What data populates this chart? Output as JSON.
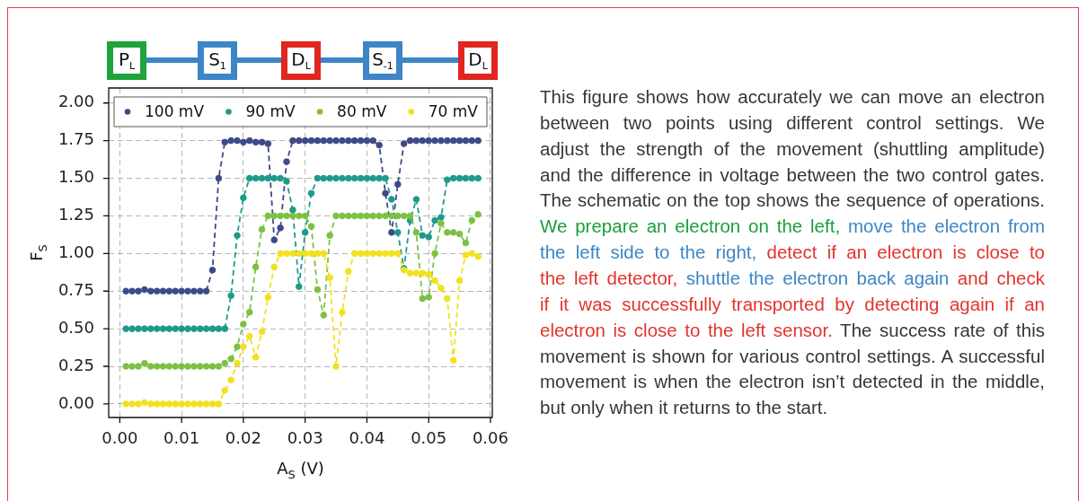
{
  "chart_data": {
    "type": "line",
    "xlabel": "A$_{S}$ (V)",
    "ylabel": "F$_{S}$",
    "annotations": [
      "P$_{L}$",
      "S$_{1}$",
      "D$_{L}$",
      "S$_{-1}$",
      "D$_{L}$",
      "This figure shows how accurately we can move an electron",
      "between two points using different control settings. We",
      "adjust the strength of the movement (shuttling amplitude)",
      "and the difference in voltage between the two control gates.",
      "The schematic on the top shows the sequence of operations.",
      "We prepare an electron on the left,",
      "move the electron from",
      "the left side to the right,",
      "detect if an electron is close to",
      "the left detector,",
      "shuttle the electron back again",
      "and check",
      "if it was successfully transported by detecting again if an",
      "electron is close to the left sensor.",
      "The success rate of this",
      "movement is shown for various control settings. A successful",
      "movement is when the electron isn’t detected in the middle,",
      "but only when it returns to the start."
    ],
    "x": [
      0.001,
      0.002,
      0.003,
      0.004,
      0.005,
      0.006,
      0.007,
      0.008,
      0.009,
      0.01,
      0.011,
      0.012,
      0.013,
      0.014,
      0.015,
      0.016,
      0.017,
      0.018,
      0.019,
      0.02,
      0.021,
      0.022,
      0.023,
      0.024,
      0.025,
      0.026,
      0.027,
      0.028,
      0.029,
      0.03,
      0.031,
      0.032,
      0.033,
      0.034,
      0.035,
      0.036,
      0.037,
      0.038,
      0.039,
      0.04,
      0.041,
      0.042,
      0.043,
      0.044,
      0.045,
      0.046,
      0.047,
      0.048,
      0.049,
      0.05,
      0.051,
      0.052,
      0.053,
      0.054,
      0.055,
      0.056,
      0.057,
      0.058
    ],
    "series": [
      {
        "name": "100 mV",
        "color": "#3e4a89",
        "values": [
          0.75,
          0.75,
          0.75,
          0.76,
          0.75,
          0.75,
          0.75,
          0.75,
          0.75,
          0.75,
          0.75,
          0.75,
          0.75,
          0.75,
          0.89,
          1.5,
          1.74,
          1.75,
          1.75,
          1.74,
          1.75,
          1.74,
          1.74,
          1.73,
          1.09,
          1.17,
          1.61,
          1.75,
          1.75,
          1.75,
          1.75,
          1.75,
          1.75,
          1.75,
          1.75,
          1.75,
          1.75,
          1.75,
          1.75,
          1.75,
          1.75,
          1.72,
          1.4,
          1.14,
          1.46,
          1.73,
          1.75,
          1.75,
          1.75,
          1.75,
          1.75,
          1.75,
          1.75,
          1.75,
          1.75,
          1.75,
          1.75,
          1.75
        ]
      },
      {
        "name": "90 mV",
        "color": "#1f9a8a",
        "values": [
          0.5,
          0.5,
          0.5,
          0.5,
          0.5,
          0.5,
          0.5,
          0.5,
          0.5,
          0.5,
          0.5,
          0.5,
          0.5,
          0.5,
          0.5,
          0.5,
          0.5,
          0.72,
          1.12,
          1.37,
          1.5,
          1.5,
          1.5,
          1.5,
          1.5,
          1.5,
          1.48,
          1.29,
          0.78,
          1.14,
          1.4,
          1.5,
          1.5,
          1.5,
          1.5,
          1.5,
          1.5,
          1.5,
          1.5,
          1.5,
          1.5,
          1.5,
          1.5,
          1.36,
          1.14,
          0.9,
          1.22,
          1.36,
          1.12,
          1.11,
          1.22,
          1.24,
          1.49,
          1.5,
          1.5,
          1.5,
          1.5,
          1.5
        ]
      },
      {
        "name": "80 mV",
        "color": "#7cc142",
        "values": [
          0.25,
          0.25,
          0.25,
          0.27,
          0.25,
          0.25,
          0.25,
          0.25,
          0.25,
          0.25,
          0.25,
          0.25,
          0.25,
          0.25,
          0.25,
          0.25,
          0.27,
          0.3,
          0.38,
          0.53,
          0.61,
          0.91,
          1.16,
          1.25,
          1.25,
          1.25,
          1.25,
          1.25,
          1.25,
          1.25,
          1.18,
          0.76,
          0.59,
          1.12,
          1.25,
          1.25,
          1.25,
          1.25,
          1.25,
          1.25,
          1.25,
          1.25,
          1.25,
          1.25,
          1.25,
          1.25,
          1.25,
          1.14,
          0.7,
          0.71,
          1.0,
          1.2,
          1.14,
          1.14,
          1.13,
          1.07,
          1.22,
          1.26
        ]
      },
      {
        "name": "70 mV",
        "color": "#f2e11e",
        "values": [
          0.0,
          0.0,
          0.0,
          0.01,
          0.0,
          0.0,
          0.0,
          0.0,
          0.0,
          0.0,
          0.0,
          0.0,
          0.0,
          0.0,
          0.0,
          0.0,
          0.09,
          0.16,
          0.27,
          0.38,
          0.45,
          0.31,
          0.48,
          0.71,
          0.91,
          1.0,
          1.0,
          1.0,
          1.0,
          1.0,
          1.0,
          1.0,
          1.0,
          0.84,
          0.25,
          0.61,
          0.88,
          1.0,
          1.0,
          1.0,
          1.0,
          1.0,
          1.0,
          1.0,
          1.0,
          0.89,
          0.87,
          0.87,
          0.87,
          0.86,
          0.82,
          0.77,
          0.7,
          0.29,
          0.82,
          0.99,
          1.0,
          0.98
        ]
      }
    ],
    "xlim": [
      -0.0018,
      0.0603
    ],
    "ylim": [
      -0.09,
      2.1
    ],
    "xticks": [
      {
        "value": 0,
        "label": "0.00"
      },
      {
        "value": 0.01,
        "label": "0.01"
      },
      {
        "value": 0.02,
        "label": "0.02"
      },
      {
        "value": 0.03,
        "label": "0.03"
      },
      {
        "value": 0.04,
        "label": "0.04"
      },
      {
        "value": 0.05,
        "label": "0.05"
      },
      {
        "value": 0.06,
        "label": "0.06"
      }
    ],
    "yticks": [
      {
        "value": 0,
        "label": "0.00"
      },
      {
        "value": 0.25,
        "label": "0.25"
      },
      {
        "value": 0.5,
        "label": "0.50"
      },
      {
        "value": 0.75,
        "label": "0.75"
      },
      {
        "value": 1,
        "label": "1.00"
      },
      {
        "value": 1.25,
        "label": "1.25"
      },
      {
        "value": 1.5,
        "label": "1.50"
      },
      {
        "value": 1.75,
        "label": "1.75"
      },
      {
        "value": 2,
        "label": "2.00"
      }
    ],
    "grid": true,
    "legend": "top",
    "marker": "circle",
    "line_style": "dashed"
  }
}
